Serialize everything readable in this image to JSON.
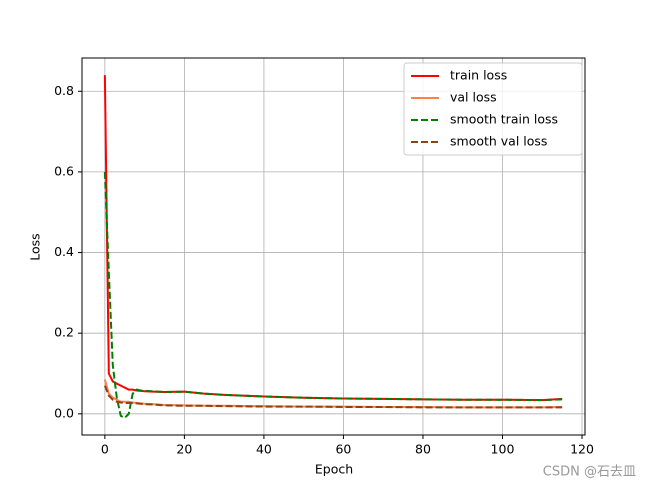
{
  "chart_data": {
    "type": "line",
    "xlabel": "Epoch",
    "ylabel": "Loss",
    "x": [
      0,
      1,
      2,
      3,
      4,
      5,
      6,
      7,
      8,
      9,
      10,
      12,
      15,
      20,
      25,
      30,
      40,
      50,
      60,
      70,
      80,
      90,
      100,
      110,
      115
    ],
    "series": [
      {
        "name": "train loss",
        "color": "#ff0000",
        "linestyle": "solid",
        "values": [
          0.84,
          0.1,
          0.08,
          0.075,
          0.07,
          0.065,
          0.06,
          0.06,
          0.058,
          0.057,
          0.056,
          0.055,
          0.054,
          0.055,
          0.05,
          0.047,
          0.043,
          0.04,
          0.038,
          0.037,
          0.036,
          0.035,
          0.035,
          0.034,
          0.037
        ]
      },
      {
        "name": "val loss",
        "color": "#ff7f50",
        "linestyle": "solid",
        "values": [
          0.085,
          0.05,
          0.04,
          0.035,
          0.03,
          0.03,
          0.03,
          0.028,
          0.027,
          0.026,
          0.025,
          0.024,
          0.022,
          0.021,
          0.02,
          0.02,
          0.019,
          0.018,
          0.018,
          0.017,
          0.017,
          0.016,
          0.016,
          0.016,
          0.017
        ]
      },
      {
        "name": "smooth train loss",
        "color": "#008000",
        "linestyle": "dashed",
        "values": [
          0.6,
          0.35,
          0.12,
          0.04,
          -0.005,
          -0.01,
          0.0,
          0.05,
          0.06,
          0.058,
          0.057,
          0.056,
          0.054,
          0.055,
          0.05,
          0.047,
          0.043,
          0.04,
          0.038,
          0.037,
          0.036,
          0.035,
          0.035,
          0.034,
          0.036
        ]
      },
      {
        "name": "smooth val loss",
        "color": "#8b4513",
        "linestyle": "dashed",
        "values": [
          0.07,
          0.045,
          0.035,
          0.03,
          0.028,
          0.027,
          0.027,
          0.027,
          0.026,
          0.025,
          0.024,
          0.023,
          0.021,
          0.02,
          0.02,
          0.019,
          0.018,
          0.018,
          0.017,
          0.017,
          0.016,
          0.016,
          0.016,
          0.016,
          0.016
        ]
      }
    ],
    "xlim": [
      -5.75,
      120.75
    ],
    "ylim": [
      -0.0525,
      0.8825
    ],
    "xticks": [
      0,
      20,
      40,
      60,
      80,
      100,
      120
    ],
    "yticks": [
      {
        "value": 0,
        "label": "0.0"
      },
      0.2,
      0.4,
      0.6,
      0.8
    ],
    "grid": true,
    "legend": "upper right",
    "watermark": "CSDN @石去皿"
  }
}
